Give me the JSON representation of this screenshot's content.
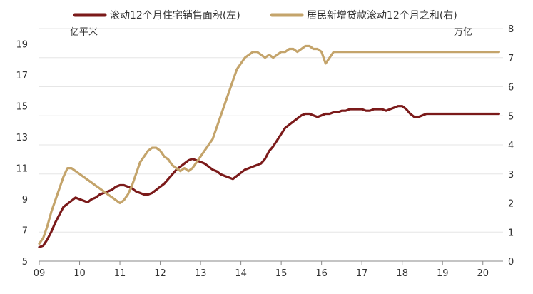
{
  "chart_data": {
    "type": "line",
    "legend": {
      "position": "top-center",
      "items": [
        {
          "label": "滚动12个月住宅销售面积(左)",
          "color": "#7B1A1A"
        },
        {
          "label": "居民新增贷款滚动12个月之和(右)",
          "color": "#C4A46B"
        }
      ]
    },
    "left_unit": "亿平米",
    "right_unit": "万亿",
    "x_ticks": [
      "09",
      "10",
      "11",
      "12",
      "13",
      "14",
      "15",
      "16",
      "17",
      "18",
      "19",
      "20"
    ],
    "x_range": [
      2009.0,
      2020.5
    ],
    "y_left": {
      "range": [
        5,
        20
      ],
      "ticks": [
        "5",
        "7",
        "9",
        "11",
        "13",
        "15",
        "17",
        "19"
      ],
      "tick_values": [
        5,
        7,
        9,
        11,
        13,
        15,
        17,
        19
      ]
    },
    "y_right": {
      "range": [
        0,
        8
      ],
      "ticks": [
        "0",
        "1",
        "2",
        "3",
        "4",
        "5",
        "6",
        "7",
        "8"
      ],
      "tick_values": [
        0,
        1,
        2,
        3,
        4,
        5,
        6,
        7,
        8
      ]
    },
    "grid": "horizontal",
    "series": [
      {
        "name": "滚动12个月住宅销售面积(左)",
        "axis": "left",
        "color": "#7B1A1A",
        "x": [
          2009.0,
          2009.1,
          2009.2,
          2009.3,
          2009.4,
          2009.5,
          2009.6,
          2009.7,
          2009.8,
          2009.9,
          2010.0,
          2010.1,
          2010.2,
          2010.3,
          2010.4,
          2010.5,
          2010.6,
          2010.7,
          2010.8,
          2010.9,
          2011.0,
          2011.1,
          2011.2,
          2011.3,
          2011.4,
          2011.5,
          2011.6,
          2011.7,
          2011.8,
          2011.9,
          2012.0,
          2012.1,
          2012.2,
          2012.3,
          2012.4,
          2012.5,
          2012.6,
          2012.7,
          2012.8,
          2012.9,
          2013.0,
          2013.1,
          2013.2,
          2013.3,
          2013.4,
          2013.5,
          2013.6,
          2013.7,
          2013.8,
          2013.9,
          2014.0,
          2014.1,
          2014.2,
          2014.3,
          2014.4,
          2014.5,
          2014.6,
          2014.7,
          2014.8,
          2014.9,
          2015.0,
          2015.1,
          2015.2,
          2015.3,
          2015.4,
          2015.5,
          2015.6,
          2015.7,
          2015.8,
          2015.9,
          2016.0,
          2016.1,
          2016.2,
          2016.3,
          2016.4,
          2016.5,
          2016.6,
          2016.7,
          2016.8,
          2016.9,
          2017.0,
          2017.1,
          2017.2,
          2017.3,
          2017.4,
          2017.5,
          2017.6,
          2017.7,
          2017.8,
          2017.9,
          2018.0,
          2018.1,
          2018.2,
          2018.3,
          2018.4,
          2018.5,
          2018.6,
          2018.7,
          2018.8,
          2018.9,
          2019.0,
          2019.1,
          2019.2,
          2019.3,
          2019.4,
          2019.5,
          2019.6,
          2019.7,
          2019.8,
          2019.9,
          2020.0,
          2020.1,
          2020.2,
          2020.3,
          2020.4
        ],
        "values": [
          5.9,
          6.0,
          6.4,
          6.9,
          7.5,
          8.0,
          8.5,
          8.7,
          8.9,
          9.1,
          9.0,
          8.9,
          8.8,
          9.0,
          9.1,
          9.3,
          9.4,
          9.5,
          9.6,
          9.8,
          9.9,
          9.9,
          9.8,
          9.7,
          9.5,
          9.4,
          9.3,
          9.3,
          9.4,
          9.6,
          9.8,
          10.0,
          10.3,
          10.6,
          10.9,
          11.1,
          11.3,
          11.5,
          11.6,
          11.5,
          11.4,
          11.3,
          11.1,
          10.9,
          10.8,
          10.6,
          10.5,
          10.4,
          10.3,
          10.5,
          10.7,
          10.9,
          11.0,
          11.1,
          11.2,
          11.3,
          11.6,
          12.1,
          12.4,
          12.8,
          13.2,
          13.6,
          13.8,
          14.0,
          14.2,
          14.4,
          14.5,
          14.5,
          14.4,
          14.3,
          14.4,
          14.5,
          14.5,
          14.6,
          14.6,
          14.7,
          14.7,
          14.8,
          14.8,
          14.8,
          14.8,
          14.7,
          14.7,
          14.8,
          14.8,
          14.8,
          14.7,
          14.8,
          14.9,
          15.0,
          15.0,
          14.8,
          14.5,
          14.3,
          14.3,
          14.4,
          14.5,
          14.5,
          14.5,
          14.5,
          14.5,
          14.5,
          14.5,
          14.5,
          14.5,
          14.5,
          14.5,
          14.5,
          14.5,
          14.5,
          14.5,
          14.5,
          14.5,
          14.5,
          14.5
        ]
      },
      {
        "name": "居民新增贷款滚动12个月之和(右)",
        "axis": "right",
        "color": "#C4A46B",
        "x": [
          2009.0,
          2009.1,
          2009.2,
          2009.3,
          2009.4,
          2009.5,
          2009.6,
          2009.7,
          2009.8,
          2009.9,
          2010.0,
          2010.1,
          2010.2,
          2010.3,
          2010.4,
          2010.5,
          2010.6,
          2010.7,
          2010.8,
          2010.9,
          2011.0,
          2011.1,
          2011.2,
          2011.3,
          2011.4,
          2011.5,
          2011.6,
          2011.7,
          2011.8,
          2011.9,
          2012.0,
          2012.1,
          2012.2,
          2012.3,
          2012.4,
          2012.5,
          2012.6,
          2012.7,
          2012.8,
          2012.9,
          2013.0,
          2013.1,
          2013.2,
          2013.3,
          2013.4,
          2013.5,
          2013.6,
          2013.7,
          2013.8,
          2013.9,
          2014.0,
          2014.1,
          2014.2,
          2014.3,
          2014.4,
          2014.5,
          2014.6,
          2014.7,
          2014.8,
          2014.9,
          2015.0,
          2015.1,
          2015.2,
          2015.3,
          2015.4,
          2015.5,
          2015.6,
          2015.7,
          2015.8,
          2015.9,
          2016.0,
          2016.1,
          2016.2,
          2016.3,
          2016.4,
          2016.5,
          2016.6,
          2016.7,
          2016.8,
          2016.9,
          2017.0,
          2017.1,
          2017.2,
          2017.3,
          2017.4,
          2017.5,
          2017.6,
          2017.7,
          2017.8,
          2017.9,
          2018.0,
          2018.1,
          2018.2,
          2018.3,
          2018.4,
          2018.5,
          2018.6,
          2018.7,
          2018.8,
          2018.9,
          2019.0,
          2019.1,
          2019.2,
          2019.3,
          2019.4,
          2019.5,
          2019.6,
          2019.7,
          2019.8,
          2019.9,
          2020.0,
          2020.1,
          2020.2,
          2020.3,
          2020.4
        ],
        "values": [
          0.6,
          0.8,
          1.2,
          1.7,
          2.1,
          2.5,
          2.9,
          3.2,
          3.2,
          3.1,
          3.0,
          2.9,
          2.8,
          2.7,
          2.6,
          2.5,
          2.4,
          2.3,
          2.2,
          2.1,
          2.0,
          2.1,
          2.3,
          2.6,
          3.0,
          3.4,
          3.6,
          3.8,
          3.9,
          3.9,
          3.8,
          3.6,
          3.5,
          3.3,
          3.2,
          3.1,
          3.2,
          3.1,
          3.2,
          3.4,
          3.6,
          3.8,
          4.0,
          4.2,
          4.6,
          5.0,
          5.4,
          5.8,
          6.2,
          6.6,
          6.8,
          7.0,
          7.1,
          7.2,
          7.2,
          7.1,
          7.0,
          7.1,
          7.0,
          7.1,
          7.2,
          7.2,
          7.3,
          7.3,
          7.2,
          7.3,
          7.4,
          7.4,
          7.3,
          7.3,
          7.2,
          6.8,
          7.0,
          7.2,
          7.2,
          7.2,
          7.2,
          7.2,
          7.2,
          7.2,
          7.2,
          7.2,
          7.2,
          7.2,
          7.2,
          7.2,
          7.2,
          7.2,
          7.2,
          7.2,
          7.2,
          7.2,
          7.2,
          7.2,
          7.2,
          7.2,
          7.2,
          7.2,
          7.2,
          7.2,
          7.2,
          7.2,
          7.2,
          7.2,
          7.2,
          7.2,
          7.2,
          7.2,
          7.2,
          7.2,
          7.2,
          7.2,
          7.2,
          7.2,
          7.2
        ]
      }
    ]
  }
}
